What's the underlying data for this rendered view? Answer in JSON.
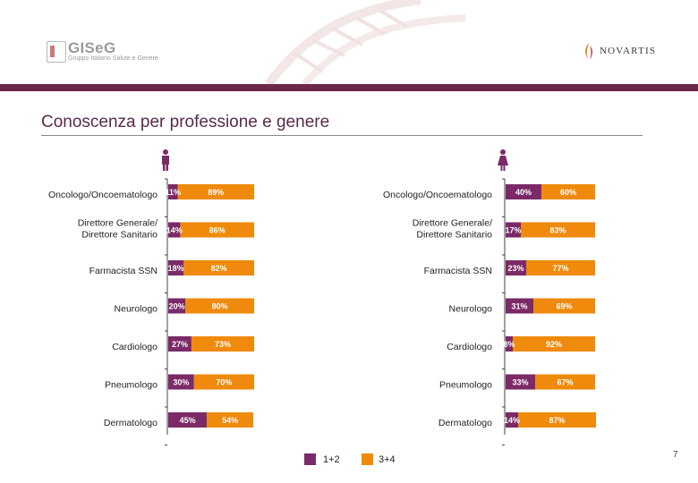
{
  "header": {
    "logo_left": {
      "name": "GISeG",
      "subtitle": "Gruppo Italiano Salute e Genere"
    },
    "logo_right": {
      "name": "NOVARTIS"
    }
  },
  "title": "Conoscenza per professione e genere",
  "page_number": "7",
  "colors": {
    "low": "#7b2a67",
    "high": "#ef8a0c",
    "accent": "#6d2748"
  },
  "chart_data": [
    {
      "type": "bar",
      "panel": "male",
      "icon": "male-figure-icon",
      "stacked": true,
      "orientation": "horizontal",
      "categories": [
        "Oncologo/Oncoematologo",
        "Direttore Generale/ Direttore Sanitario",
        "Farmacista SSN",
        "Neurologo",
        "Cardiologo",
        "Pneumologo",
        "Dermatologo"
      ],
      "series": [
        {
          "name": "1+2",
          "values": [
            11,
            14,
            18,
            20,
            27,
            30,
            45
          ]
        },
        {
          "name": "3+4",
          "values": [
            89,
            86,
            82,
            80,
            73,
            70,
            54
          ]
        }
      ],
      "xlim": [
        0,
        100
      ]
    },
    {
      "type": "bar",
      "panel": "female",
      "icon": "female-figure-icon",
      "stacked": true,
      "orientation": "horizontal",
      "categories": [
        "Oncologo/Oncoematologo",
        "Direttore Generale/ Direttore Sanitario",
        "Farmacista SSN",
        "Neurologo",
        "Cardiologo",
        "Pneumologo",
        "Dermatologo"
      ],
      "series": [
        {
          "name": "1+2",
          "values": [
            40,
            17,
            23,
            31,
            8,
            33,
            14
          ]
        },
        {
          "name": "3+4",
          "values": [
            60,
            83,
            77,
            69,
            92,
            67,
            87
          ]
        }
      ],
      "xlim": [
        0,
        100
      ]
    }
  ],
  "legend": [
    {
      "label": "1+2",
      "color": "#7b2a67"
    },
    {
      "label": "3+4",
      "color": "#ef8a0c"
    }
  ]
}
